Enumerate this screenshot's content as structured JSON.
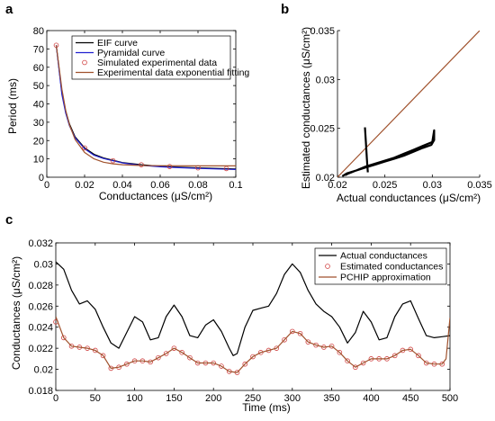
{
  "colors": {
    "black": "#000000",
    "blue": "#2020d0",
    "brown": "#a0522d",
    "marker": "#d04040"
  },
  "chart_data": [
    {
      "panel": "a",
      "type": "line",
      "xlabel": "Conductances (μS/cm²)",
      "ylabel": "Period (ms)",
      "xlim": [
        0,
        0.1
      ],
      "ylim": [
        0,
        80
      ],
      "xticks": [
        "0",
        "0.02",
        "0.04",
        "0.06",
        "0.08",
        "0.1"
      ],
      "yticks": [
        "0",
        "10",
        "20",
        "30",
        "40",
        "50",
        "60",
        "70",
        "80"
      ],
      "grid": false,
      "legend": "top-right",
      "series": [
        {
          "name": "EIF curve",
          "color": "#000000",
          "style": "line",
          "x": [
            0.005,
            0.008,
            0.01,
            0.012,
            0.015,
            0.02,
            0.025,
            0.03,
            0.04,
            0.05,
            0.06,
            0.07,
            0.08,
            0.09,
            0.1
          ],
          "y": [
            72,
            46,
            36,
            29,
            22,
            16,
            12.5,
            10.5,
            8,
            6.8,
            6,
            5.5,
            5.1,
            4.8,
            4.5
          ]
        },
        {
          "name": "Pyramidal curve",
          "color": "#2020d0",
          "style": "line",
          "x": [
            0.005,
            0.008,
            0.01,
            0.012,
            0.015,
            0.02,
            0.025,
            0.03,
            0.04,
            0.05,
            0.06,
            0.07,
            0.08,
            0.09,
            0.1
          ],
          "y": [
            72,
            45,
            35,
            28,
            21.5,
            15.5,
            12,
            10.2,
            7.8,
            6.5,
            5.7,
            5.2,
            4.8,
            4.5,
            4.2
          ]
        },
        {
          "name": "Simulated experimental data",
          "color": "#d04040",
          "style": "marker",
          "x": [
            0.005,
            0.02,
            0.035,
            0.05,
            0.065,
            0.08,
            0.095
          ],
          "y": [
            72,
            16,
            9,
            6.8,
            5.8,
            5.1,
            4.7
          ]
        },
        {
          "name": "Experimental data exponential fitting",
          "color": "#a0522d",
          "style": "line",
          "x": [
            0.005,
            0.008,
            0.01,
            0.012,
            0.015,
            0.02,
            0.025,
            0.03,
            0.035,
            0.04,
            0.05,
            0.06,
            0.08,
            0.1
          ],
          "y": [
            72,
            48,
            36.5,
            28.5,
            20.5,
            13.5,
            10,
            8.2,
            7.3,
            6.8,
            6.4,
            6.3,
            6.2,
            6.2
          ]
        }
      ]
    },
    {
      "panel": "b",
      "type": "line",
      "xlabel": "Actual conductances (μS/cm²)",
      "ylabel": "Estimated conductances (μS/cm²)",
      "xlim": [
        0.02,
        0.035
      ],
      "ylim": [
        0.02,
        0.035
      ],
      "xticks": [
        "0.02",
        "0.025",
        "0.03",
        "0.035"
      ],
      "yticks": [
        "0.02",
        "0.025",
        "0.03",
        "0.035"
      ],
      "grid": false,
      "series": [
        {
          "color": "#a0522d",
          "x": [
            0.02,
            0.035
          ],
          "y": [
            0.02,
            0.035
          ]
        },
        {
          "color": "#000000",
          "x": [
            0.0205,
            0.021,
            0.022,
            0.023,
            0.024,
            0.025,
            0.026,
            0.027,
            0.028,
            0.029,
            0.0299,
            0.0302,
            0.0302,
            0.03,
            0.029,
            0.028,
            0.027,
            0.026,
            0.025,
            0.024,
            0.023,
            0.022,
            0.0212,
            0.0208
          ],
          "y": [
            0.0201,
            0.0204,
            0.0207,
            0.021,
            0.0213,
            0.0216,
            0.0219,
            0.0222,
            0.0226,
            0.023,
            0.0233,
            0.0238,
            0.0248,
            0.0236,
            0.0232,
            0.0228,
            0.0224,
            0.022,
            0.0217,
            0.0214,
            0.0211,
            0.0207,
            0.0204,
            0.0202
          ]
        },
        {
          "color": "#000000",
          "x": [
            0.0229,
            0.023,
            0.0231,
            0.0232
          ],
          "y": [
            0.0251,
            0.0235,
            0.0218,
            0.0205
          ]
        }
      ]
    },
    {
      "panel": "c",
      "type": "line",
      "xlabel": "Time (ms)",
      "ylabel": "Conductances (μS/cm²)",
      "xlim": [
        0,
        500
      ],
      "ylim": [
        0.018,
        0.032
      ],
      "xticks": [
        "0",
        "50",
        "100",
        "150",
        "200",
        "250",
        "300",
        "350",
        "400",
        "450",
        "500"
      ],
      "yticks": [
        "0.018",
        "0.02",
        "0.022",
        "0.024",
        "0.026",
        "0.028",
        "0.03",
        "0.032"
      ],
      "grid": false,
      "legend": "top-right",
      "series": [
        {
          "name": "Actual conductances",
          "color": "#000000",
          "style": "line",
          "x": [
            0,
            10,
            20,
            30,
            40,
            50,
            60,
            70,
            80,
            90,
            100,
            110,
            120,
            130,
            140,
            150,
            160,
            170,
            180,
            190,
            200,
            210,
            220,
            225,
            230,
            240,
            250,
            260,
            270,
            280,
            290,
            300,
            310,
            320,
            330,
            340,
            350,
            360,
            370,
            380,
            390,
            400,
            410,
            420,
            430,
            440,
            450,
            460,
            470,
            480,
            490,
            500
          ],
          "y": [
            0.0302,
            0.0295,
            0.0275,
            0.0262,
            0.0265,
            0.0257,
            0.024,
            0.0225,
            0.022,
            0.0235,
            0.025,
            0.0245,
            0.0228,
            0.023,
            0.025,
            0.0261,
            0.025,
            0.0232,
            0.023,
            0.0242,
            0.0247,
            0.0236,
            0.022,
            0.0213,
            0.0215,
            0.024,
            0.0256,
            0.0258,
            0.026,
            0.0272,
            0.029,
            0.03,
            0.0292,
            0.0275,
            0.0262,
            0.0255,
            0.025,
            0.024,
            0.0225,
            0.0235,
            0.0255,
            0.0245,
            0.0228,
            0.023,
            0.025,
            0.0262,
            0.0265,
            0.0248,
            0.0232,
            0.023,
            0.0231,
            0.0232
          ]
        },
        {
          "name": "Estimated conductances",
          "color": "#d04040",
          "style": "marker",
          "x": [
            0,
            10,
            20,
            30,
            40,
            50,
            60,
            70,
            80,
            90,
            100,
            110,
            120,
            130,
            140,
            150,
            160,
            170,
            180,
            190,
            200,
            210,
            220,
            230,
            240,
            250,
            260,
            270,
            280,
            290,
            300,
            310,
            320,
            330,
            340,
            350,
            360,
            370,
            380,
            390,
            400,
            410,
            420,
            430,
            440,
            450,
            460,
            470,
            480,
            490
          ],
          "y": [
            0.0245,
            0.023,
            0.0222,
            0.0221,
            0.022,
            0.0218,
            0.0213,
            0.0201,
            0.0202,
            0.0205,
            0.0208,
            0.0208,
            0.0207,
            0.0211,
            0.0215,
            0.022,
            0.0216,
            0.0211,
            0.0206,
            0.0206,
            0.0206,
            0.0203,
            0.0198,
            0.0197,
            0.0205,
            0.0212,
            0.0216,
            0.0218,
            0.022,
            0.0228,
            0.0236,
            0.0234,
            0.0226,
            0.0223,
            0.0221,
            0.0222,
            0.0216,
            0.0208,
            0.0202,
            0.0206,
            0.021,
            0.021,
            0.021,
            0.0213,
            0.0218,
            0.0219,
            0.0213,
            0.0206,
            0.0205,
            0.0205
          ]
        },
        {
          "name": "PCHIP approximation",
          "color": "#a0522d",
          "style": "line",
          "x": [
            0,
            10,
            20,
            30,
            40,
            50,
            60,
            70,
            80,
            90,
            100,
            110,
            120,
            130,
            140,
            150,
            160,
            170,
            180,
            190,
            200,
            210,
            220,
            230,
            240,
            250,
            260,
            270,
            280,
            290,
            300,
            310,
            320,
            330,
            340,
            350,
            360,
            370,
            380,
            390,
            400,
            410,
            420,
            430,
            440,
            450,
            460,
            470,
            480,
            490,
            495,
            500
          ],
          "y": [
            0.025,
            0.023,
            0.0222,
            0.0221,
            0.022,
            0.0218,
            0.0213,
            0.0201,
            0.0202,
            0.0205,
            0.0208,
            0.0208,
            0.0207,
            0.0211,
            0.0215,
            0.022,
            0.0216,
            0.0211,
            0.0206,
            0.0206,
            0.0206,
            0.0203,
            0.0198,
            0.0197,
            0.0205,
            0.0212,
            0.0216,
            0.0218,
            0.022,
            0.0228,
            0.0236,
            0.0234,
            0.0226,
            0.0223,
            0.0221,
            0.0222,
            0.0216,
            0.0208,
            0.0202,
            0.0206,
            0.021,
            0.021,
            0.021,
            0.0213,
            0.0218,
            0.0219,
            0.0213,
            0.0206,
            0.0205,
            0.0205,
            0.021,
            0.0249
          ]
        }
      ]
    }
  ]
}
